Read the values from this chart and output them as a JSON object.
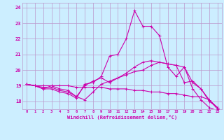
{
  "xlabel": "Windchill (Refroidissement éolien,°C)",
  "xlim": [
    -0.5,
    23.5
  ],
  "ylim": [
    17.5,
    24.3
  ],
  "yticks": [
    18,
    19,
    20,
    21,
    22,
    23,
    24
  ],
  "xticks": [
    0,
    1,
    2,
    3,
    4,
    5,
    6,
    7,
    8,
    9,
    10,
    11,
    12,
    13,
    14,
    15,
    16,
    17,
    18,
    19,
    20,
    21,
    22,
    23
  ],
  "background_color": "#cceeff",
  "grid_color": "#bb99cc",
  "line_color": "#cc00aa",
  "series": [
    [
      19.1,
      19.0,
      18.8,
      18.8,
      18.6,
      18.5,
      18.2,
      19.1,
      19.2,
      19.6,
      20.9,
      21.0,
      22.0,
      23.8,
      22.8,
      22.8,
      22.2,
      20.2,
      19.6,
      20.2,
      18.8,
      18.1,
      17.6,
      17.4
    ],
    [
      19.1,
      19.0,
      18.8,
      19.0,
      18.8,
      18.7,
      18.3,
      18.1,
      18.6,
      19.1,
      19.3,
      19.5,
      19.8,
      20.2,
      20.5,
      20.6,
      20.5,
      20.4,
      20.3,
      19.2,
      19.3,
      18.8,
      18.1,
      17.6
    ],
    [
      19.1,
      19.0,
      18.9,
      18.9,
      18.7,
      18.6,
      18.3,
      19.0,
      19.3,
      19.5,
      19.2,
      19.5,
      19.7,
      19.9,
      20.0,
      20.3,
      20.5,
      20.4,
      20.3,
      20.2,
      19.2,
      18.8,
      18.0,
      17.6
    ],
    [
      19.1,
      19.0,
      19.0,
      19.0,
      19.0,
      19.0,
      18.9,
      18.9,
      18.9,
      18.9,
      18.8,
      18.8,
      18.8,
      18.7,
      18.7,
      18.6,
      18.6,
      18.5,
      18.5,
      18.4,
      18.3,
      18.3,
      18.1,
      17.5
    ]
  ]
}
